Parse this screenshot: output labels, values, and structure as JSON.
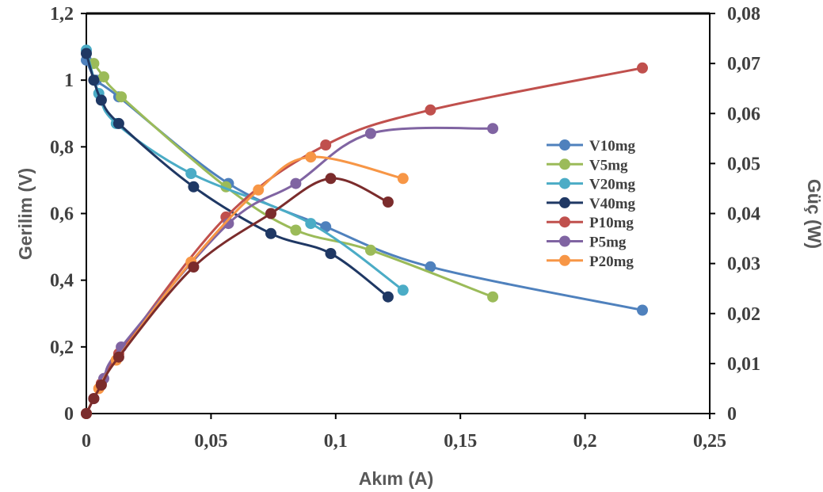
{
  "chart_data": {
    "type": "scatter",
    "xlabel": "Akım (A)",
    "ylabel": "Gerilim (V)",
    "y2label": "Güç (W)",
    "xlim": [
      0,
      0.25
    ],
    "ylim": [
      0,
      1.2
    ],
    "y2lim": [
      0,
      0.08
    ],
    "x_ticks": [
      "0",
      "0,05",
      "0,1",
      "0,15",
      "0,2",
      "0,25"
    ],
    "y_ticks": [
      "0",
      "0,2",
      "0,4",
      "0,6",
      "0,8",
      "1",
      "1,2"
    ],
    "y2_ticks": [
      "0",
      "0,01",
      "0,02",
      "0,03",
      "0,04",
      "0,05",
      "0,06",
      "0,07",
      "0,08"
    ],
    "grid": false,
    "legend_position": "right",
    "series": [
      {
        "name": "V10mg",
        "axis": "left",
        "color": "#4F81BD",
        "x": [
          0,
          0.004,
          0.013,
          0.057,
          0.096,
          0.138,
          0.223
        ],
        "y": [
          1.06,
          1.0,
          0.95,
          0.69,
          0.56,
          0.44,
          0.31
        ]
      },
      {
        "name": "V5mg",
        "axis": "left",
        "color": "#9BBB59",
        "x": [
          0.003,
          0.007,
          0.014,
          0.056,
          0.084,
          0.114,
          0.163
        ],
        "y": [
          1.05,
          1.01,
          0.95,
          0.68,
          0.55,
          0.49,
          0.35
        ]
      },
      {
        "name": "V20mg",
        "axis": "left",
        "color": "#4BACC6",
        "x": [
          0,
          0.005,
          0.012,
          0.042,
          0.09,
          0.127
        ],
        "y": [
          1.09,
          0.96,
          0.87,
          0.72,
          0.57,
          0.37
        ]
      },
      {
        "name": "V40mg",
        "axis": "left",
        "color": "#1F3864",
        "x": [
          0,
          0.003,
          0.006,
          0.013,
          0.043,
          0.074,
          0.098,
          0.121
        ],
        "y": [
          1.08,
          1.0,
          0.94,
          0.87,
          0.68,
          0.54,
          0.48,
          0.35
        ]
      },
      {
        "name": "P10mg",
        "axis": "right",
        "color": "#C0504D",
        "x": [
          0,
          0.003,
          0.006,
          0.013,
          0.056,
          0.096,
          0.138,
          0.223
        ],
        "y": [
          0,
          0.003,
          0.006,
          0.012,
          0.0393,
          0.0537,
          0.0607,
          0.0691
        ]
      },
      {
        "name": "P5mg",
        "axis": "right",
        "color": "#8064A2",
        "x": [
          0,
          0.003,
          0.007,
          0.014,
          0.057,
          0.084,
          0.114,
          0.163
        ],
        "y": [
          0,
          0.003,
          0.007,
          0.0133,
          0.038,
          0.046,
          0.056,
          0.057
        ]
      },
      {
        "name": "P20mg",
        "axis": "right",
        "color": "#F79646",
        "x": [
          0,
          0.005,
          0.012,
          0.042,
          0.069,
          0.09,
          0.127
        ],
        "y": [
          0,
          0.005,
          0.0107,
          0.0303,
          0.0447,
          0.0513,
          0.047
        ]
      },
      {
        "name": "V40mg",
        "axis": "right",
        "color": "#7B2C2C",
        "show_in_legend": false,
        "x": [
          0,
          0.003,
          0.006,
          0.013,
          0.043,
          0.074,
          0.098,
          0.121
        ],
        "y": [
          0,
          0.003,
          0.0057,
          0.0113,
          0.0293,
          0.04,
          0.047,
          0.0423
        ]
      }
    ]
  }
}
